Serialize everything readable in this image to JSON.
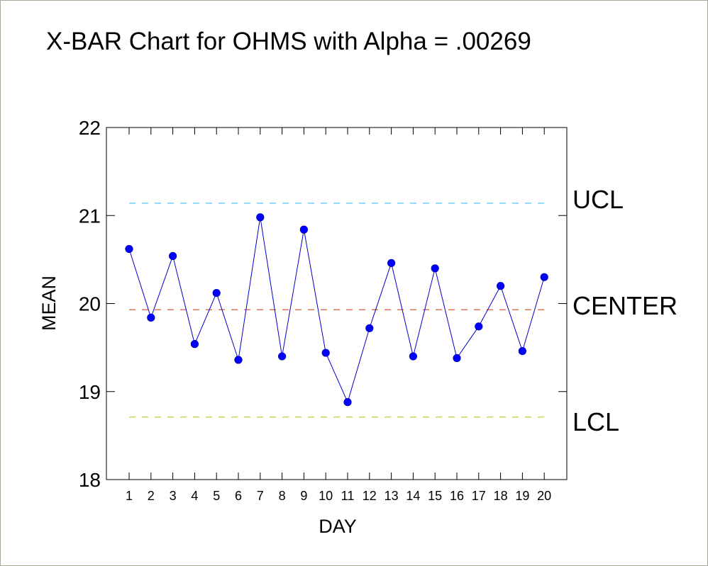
{
  "chart_data": {
    "type": "line",
    "title": "X-BAR Chart for OHMS with Alpha = .00269",
    "xlabel": "DAY",
    "ylabel": "MEAN",
    "ylim": [
      18,
      22
    ],
    "yticks": [
      18,
      19,
      20,
      21,
      22
    ],
    "x": [
      1,
      2,
      3,
      4,
      5,
      6,
      7,
      8,
      9,
      10,
      11,
      12,
      13,
      14,
      15,
      16,
      17,
      18,
      19,
      20
    ],
    "series": [
      {
        "values": [
          20.62,
          19.84,
          20.54,
          19.54,
          20.12,
          19.36,
          20.98,
          19.4,
          20.84,
          19.44,
          18.88,
          19.72,
          20.46,
          19.4,
          20.4,
          19.38,
          19.74,
          20.2,
          19.46,
          20.3
        ]
      }
    ],
    "control_lines": [
      {
        "label": "UCL",
        "value": 21.14,
        "color": "#4fc6f0"
      },
      {
        "label": "CENTER",
        "value": 19.93,
        "color": "#d04a2e"
      },
      {
        "label": "LCL",
        "value": 18.71,
        "color": "#c8c83c"
      }
    ],
    "colors": {
      "line": "#0000cc",
      "marker": "#0000ff"
    },
    "grid": false
  }
}
